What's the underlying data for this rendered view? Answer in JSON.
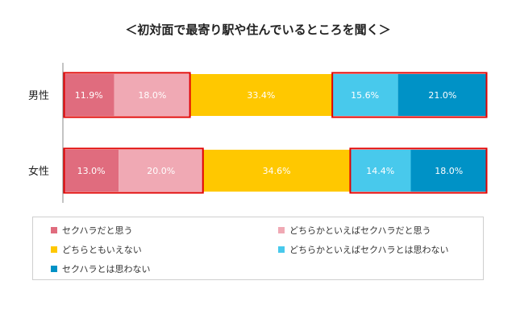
{
  "chart_data": {
    "type": "bar",
    "orientation": "horizontal",
    "stacked": true,
    "title": "＜初対面で最寄り駅や住んでいるところを聞く＞",
    "categories": [
      "男性",
      "女性"
    ],
    "series": [
      {
        "name": "セクハラだと思う",
        "color": "#e06c7e",
        "values": [
          11.9,
          13.0
        ]
      },
      {
        "name": "どちらかといえばセクハラだと思う",
        "color": "#f0a9b4",
        "values": [
          18.0,
          20.0
        ]
      },
      {
        "name": "どちらともいえない",
        "color": "#ffc800",
        "values": [
          33.4,
          34.6
        ]
      },
      {
        "name": "どちらかといえばセクハラとは思わない",
        "color": "#48c9ec",
        "values": [
          15.6,
          14.4
        ]
      },
      {
        "name": "セクハラとは思わない",
        "color": "#0092c6",
        "values": [
          21.0,
          18.0
        ]
      }
    ],
    "data_labels": [
      [
        "11.9%",
        "18.0%",
        "33.4%",
        "15.6%",
        "21.0%"
      ],
      [
        "13.0%",
        "20.0%",
        "34.6%",
        "14.4%",
        "18.0%"
      ]
    ],
    "highlight_groups": [
      [
        0,
        1
      ],
      [
        3,
        4
      ]
    ],
    "highlight_color": "#e00000",
    "legend_position": "bottom",
    "grid": false
  }
}
